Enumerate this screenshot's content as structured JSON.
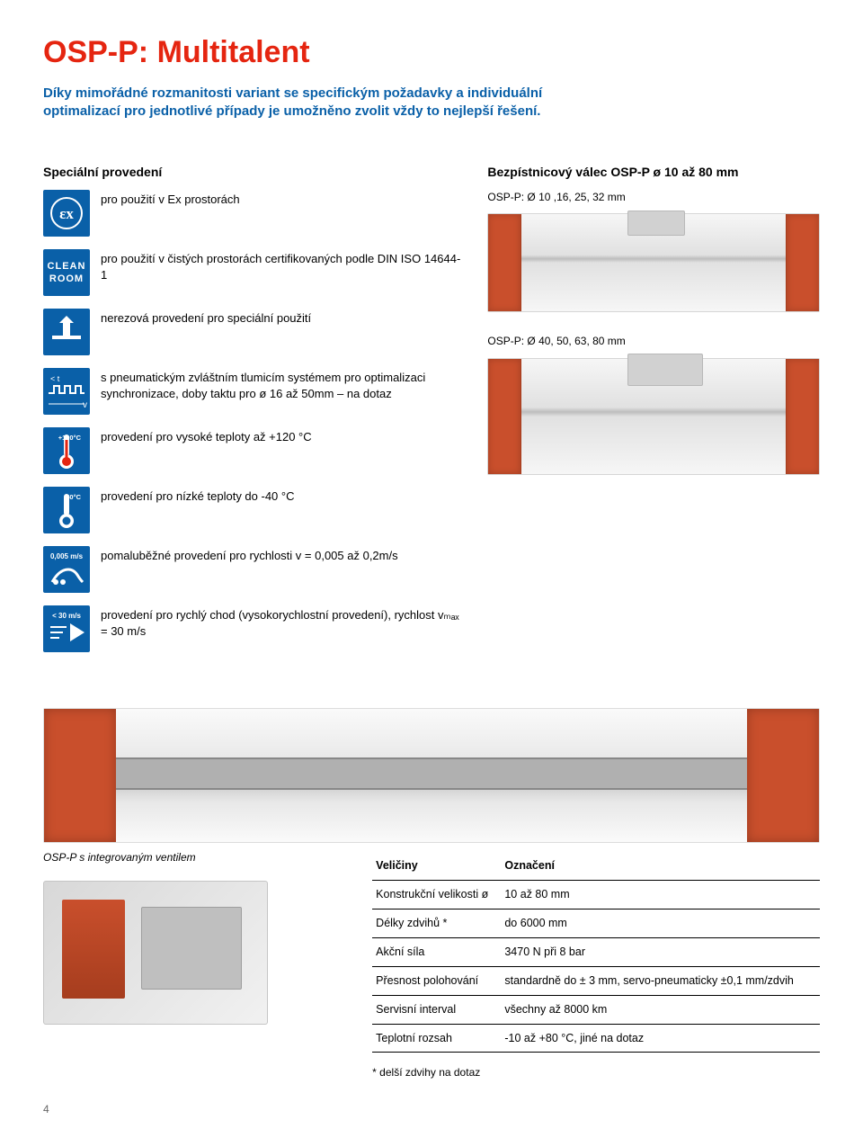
{
  "title": "OSP-P: Multitalent",
  "intro": "Díky mimořádné rozmanitosti variant se specifickým požadavky a individuální optimalizací pro jednotlivé případy je umožněno zvolit vždy to nejlepší řešení.",
  "left_heading": "Speciální provedení",
  "right_heading": "Bezpístnicový válec OSP-P ø 10 až 80 mm",
  "specs": [
    {
      "icon": "ex",
      "text": "pro použití v Ex prostorách"
    },
    {
      "icon": "cleanroom",
      "text": "pro použití v čistých prostorách certifikovaných podle DIN ISO 14644-1"
    },
    {
      "icon": "valve",
      "text": "nerezová provedení pro speciální použití"
    },
    {
      "icon": "pulse",
      "text": "s pneumatickým zvláštním tlumicím systémem pro optimalizaci synchronizace, doby taktu pro ø 16 až 50mm – na dotaz"
    },
    {
      "icon": "hot",
      "label": "+120°C",
      "text": "provedení pro vysoké teploty až +120 °C"
    },
    {
      "icon": "cold",
      "label": "-40°C",
      "text": "provedení pro nízké teploty do -40 °C"
    },
    {
      "icon": "slow",
      "label": "0,005 m/s",
      "text": "pomaluběžné provedení pro rychlosti v = 0,005 až 0,2m/s"
    },
    {
      "icon": "fast",
      "label": "< 30 m/s",
      "text": "provedení pro rychlý chod (vysokorychlostní provedení), rychlost vₘₐₓ = 30 m/s"
    }
  ],
  "cyl_small_label": "OSP-P: Ø 10 ,16, 25, 32 mm",
  "cyl_large_label": "OSP-P: Ø 40, 50, 63, 80 mm",
  "big_photo_caption": "OSP-P s integrovaným ventilem",
  "table": {
    "columns": [
      "Veličiny",
      "Označení"
    ],
    "rows": [
      [
        "Konstrukční velikosti ø",
        "10 až 80 mm"
      ],
      [
        "Délky zdvihů *",
        "do 6000 mm"
      ],
      [
        "Akční síla",
        "3470 N při 8 bar"
      ],
      [
        "Přesnost polohování",
        "standardně do ± 3 mm, servo-pneumaticky ±0,1 mm/zdvih"
      ],
      [
        "Servisní interval",
        "všechny až 8000 km"
      ],
      [
        "Teplotní rozsah",
        "-10 až +80 °C, jiné na dotaz"
      ]
    ],
    "footnote": "* delší zdvihy na dotaz"
  },
  "page_number": "4",
  "colors": {
    "title": "#e52510",
    "intro": "#0a60a8",
    "icon_bg": "#0a60a8",
    "accent_metal": "#c94f2c"
  }
}
